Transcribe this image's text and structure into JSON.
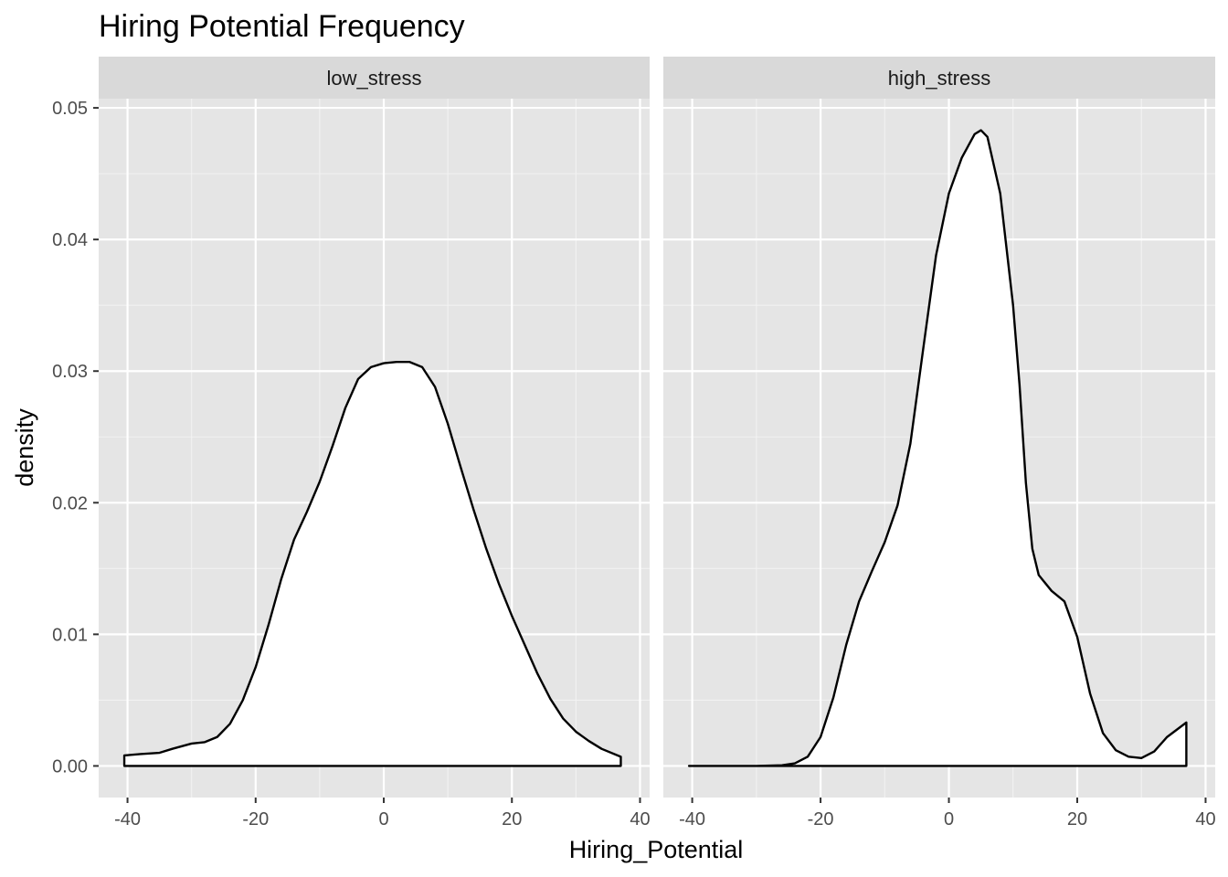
{
  "chart_data": {
    "type": "area",
    "title": "Hiring Potential Frequency",
    "xlabel": "Hiring_Potential",
    "ylabel": "density",
    "xlim": [
      -44.5,
      41.5
    ],
    "ylim": [
      -0.0024,
      0.0507
    ],
    "x_ticks": [
      -40,
      -20,
      0,
      20,
      40
    ],
    "y_ticks": [
      0.0,
      0.01,
      0.02,
      0.03,
      0.04,
      0.05
    ],
    "x_tick_labels": [
      "-40",
      "-20",
      "0",
      "20",
      "40"
    ],
    "y_tick_labels": [
      "0.00",
      "0.01",
      "0.02",
      "0.03",
      "0.04",
      "0.05"
    ],
    "grid": true,
    "panel_background": "#E5E5E5",
    "strip_background": "#D9D9D9",
    "fill_color": "#FFFFFF",
    "line_color": "#000000",
    "panels": [
      {
        "label": "low_stress",
        "x": [
          -40.5,
          -38,
          -35,
          -33,
          -30,
          -28,
          -26,
          -24,
          -22,
          -20,
          -18,
          -16,
          -14,
          -12,
          -10,
          -8,
          -6,
          -4,
          -2,
          0,
          2,
          4,
          6,
          8,
          10,
          12,
          14,
          16,
          18,
          20,
          22,
          24,
          26,
          28,
          30,
          32,
          34,
          37
        ],
        "y": [
          0.0008,
          0.0009,
          0.001,
          0.0013,
          0.0017,
          0.0018,
          0.0022,
          0.0032,
          0.005,
          0.0075,
          0.0107,
          0.0142,
          0.0172,
          0.0193,
          0.0216,
          0.0243,
          0.0272,
          0.0294,
          0.0303,
          0.0306,
          0.0307,
          0.0307,
          0.0303,
          0.0288,
          0.026,
          0.0227,
          0.0195,
          0.0165,
          0.0138,
          0.0114,
          0.0092,
          0.007,
          0.0051,
          0.0036,
          0.0026,
          0.0019,
          0.0013,
          0.0007
        ]
      },
      {
        "label": "high_stress",
        "x": [
          -40.5,
          -30,
          -26,
          -24,
          -22,
          -20,
          -18,
          -16,
          -14,
          -12,
          -10,
          -8,
          -6,
          -4,
          -2,
          0,
          2,
          4,
          5,
          6,
          8,
          10,
          11,
          12,
          13,
          14,
          16,
          18,
          20,
          22,
          24,
          26,
          28,
          30,
          32,
          34,
          37
        ],
        "y": [
          0,
          0,
          5e-05,
          0.0002,
          0.0007,
          0.0022,
          0.0052,
          0.0092,
          0.0125,
          0.0148,
          0.017,
          0.0198,
          0.0245,
          0.0317,
          0.0388,
          0.0435,
          0.0462,
          0.048,
          0.0483,
          0.0478,
          0.0435,
          0.035,
          0.029,
          0.0215,
          0.0165,
          0.0145,
          0.0133,
          0.0125,
          0.0098,
          0.0055,
          0.0025,
          0.0012,
          0.0007,
          0.0006,
          0.0011,
          0.0022,
          0.0033
        ]
      }
    ]
  }
}
